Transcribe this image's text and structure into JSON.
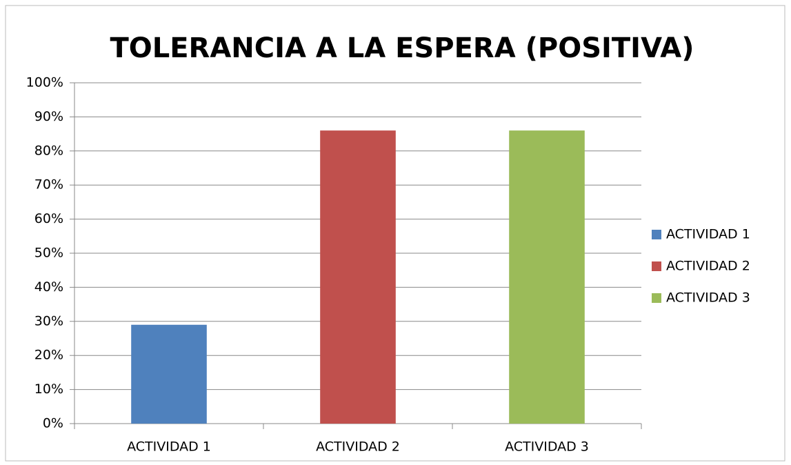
{
  "chart_data": {
    "type": "bar",
    "title": "TOLERANCIA A LA ESPERA (POSITIVA)",
    "categories": [
      "ACTIVIDAD 1",
      "ACTIVIDAD 2",
      "ACTIVIDAD 3"
    ],
    "values": [
      29,
      86,
      86
    ],
    "colors": [
      "#4f81bd",
      "#c0504d",
      "#9bbb59"
    ],
    "ylim": [
      0,
      100
    ],
    "yticks": [
      {
        "value": 0,
        "label": "0%"
      },
      {
        "value": 10,
        "label": "10%"
      },
      {
        "value": 20,
        "label": "20%"
      },
      {
        "value": 30,
        "label": "30%"
      },
      {
        "value": 40,
        "label": "40%"
      },
      {
        "value": 50,
        "label": "50%"
      },
      {
        "value": 60,
        "label": "60%"
      },
      {
        "value": 70,
        "label": "70%"
      },
      {
        "value": 80,
        "label": "80%"
      },
      {
        "value": 90,
        "label": "90%"
      },
      {
        "value": 100,
        "label": "100%"
      }
    ],
    "grid": true,
    "legend": "right"
  }
}
